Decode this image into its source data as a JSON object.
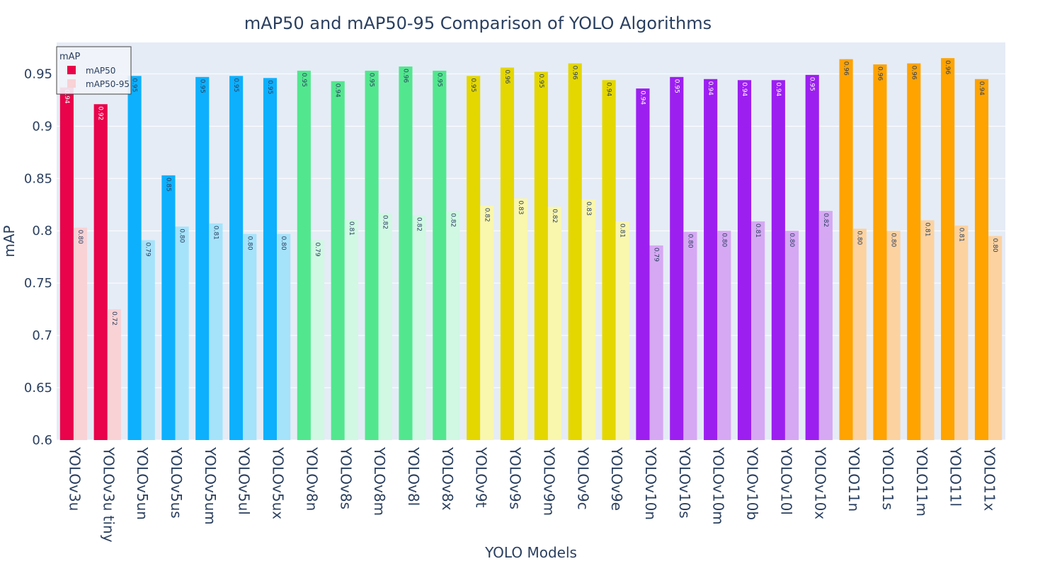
{
  "chart_data": {
    "type": "bar",
    "title": "mAP50 and mAP50-95 Comparison of YOLO Algorithms",
    "xlabel": "YOLO Models",
    "ylabel": "mAP",
    "ylim": [
      0.6,
      0.98
    ],
    "yticks": [
      0.6,
      0.65,
      0.7,
      0.75,
      0.8,
      0.85,
      0.9,
      0.95
    ],
    "ytick_labels": [
      "0.6",
      "0.65",
      "0.7",
      "0.75",
      "0.8",
      "0.85",
      "0.9",
      "0.95"
    ],
    "grid": true,
    "legend": {
      "title": "mAP",
      "position": "top-left",
      "entries": [
        "mAP50",
        "mAP50-95"
      ]
    },
    "categories": [
      "YOLOv3u",
      "YOLOv3u tiny",
      "YOLOv5un",
      "YOLOv5us",
      "YOLOv5um",
      "YOLOv5ul",
      "YOLOv5ux",
      "YOLOv8n",
      "YOLOv8s",
      "YOLOv8m",
      "YOLOv8l",
      "YOLOv8x",
      "YOLOv9t",
      "YOLOv9s",
      "YOLOv9m",
      "YOLOv9c",
      "YOLOv9e",
      "YOLOv10n",
      "YOLOv10s",
      "YOLOv10m",
      "YOLOv10b",
      "YOLOv10l",
      "YOLOv10x",
      "YOLO11n",
      "YOLO11s",
      "YOLO11m",
      "YOLO11l",
      "YOLO11x"
    ],
    "series": [
      {
        "name": "mAP50",
        "values": [
          0.937,
          0.921,
          0.948,
          0.853,
          0.947,
          0.948,
          0.946,
          0.953,
          0.943,
          0.953,
          0.957,
          0.953,
          0.948,
          0.956,
          0.952,
          0.96,
          0.944,
          0.936,
          0.947,
          0.945,
          0.944,
          0.944,
          0.949,
          0.964,
          0.959,
          0.96,
          0.965,
          0.945
        ],
        "labels": [
          "0.94",
          "0.92",
          "0.95",
          "0.85",
          "0.95",
          "0.95",
          "0.95",
          "0.95",
          "0.94",
          "0.95",
          "0.96",
          "0.95",
          "0.95",
          "0.96",
          "0.95",
          "0.96",
          "0.94",
          "0.94",
          "0.95",
          "0.94",
          "0.94",
          "0.94",
          "0.95",
          "0.96",
          "0.96",
          "0.96",
          "0.96",
          "0.94"
        ]
      },
      {
        "name": "mAP50-95",
        "values": [
          0.803,
          0.725,
          0.791,
          0.804,
          0.807,
          0.797,
          0.797,
          0.791,
          0.811,
          0.817,
          0.815,
          0.819,
          0.824,
          0.831,
          0.823,
          0.83,
          0.809,
          0.786,
          0.799,
          0.8,
          0.809,
          0.8,
          0.819,
          0.802,
          0.8,
          0.81,
          0.805,
          0.795
        ],
        "labels": [
          "0.80",
          "0.72",
          "0.79",
          "0.80",
          "0.81",
          "0.80",
          "0.80",
          "0.79",
          "0.81",
          "0.82",
          "0.82",
          "0.82",
          "0.82",
          "0.83",
          "0.82",
          "0.83",
          "0.81",
          "0.79",
          "0.80",
          "0.80",
          "0.81",
          "0.80",
          "0.82",
          "0.80",
          "0.80",
          "0.81",
          "0.81",
          "0.80"
        ]
      }
    ],
    "family_colors": {
      "mAP50": [
        "#e8034a",
        "#e8034a",
        "#0db0fd",
        "#0db0fd",
        "#0db0fd",
        "#0db0fd",
        "#0db0fd",
        "#52e78e",
        "#52e78e",
        "#52e78e",
        "#52e78e",
        "#52e78e",
        "#e4d700",
        "#e4d700",
        "#e4d700",
        "#e4d700",
        "#e4d700",
        "#9c1ff0",
        "#9c1ff0",
        "#9c1ff0",
        "#9c1ff0",
        "#9c1ff0",
        "#9c1ff0",
        "#fea300",
        "#fea300",
        "#fea300",
        "#fea300",
        "#fea300"
      ],
      "mAP50-95": [
        "#f8d2d5",
        "#f8d2d5",
        "#a5e3fb",
        "#a5e3fb",
        "#a5e3fb",
        "#a5e3fb",
        "#a5e3fb",
        "#d0f8e3",
        "#d0f8e3",
        "#d0f8e3",
        "#d0f8e3",
        "#d0f8e3",
        "#f9f6ae",
        "#f9f6ae",
        "#f9f6ae",
        "#f9f6ae",
        "#f9f6ae",
        "#d6a8f4",
        "#d6a8f4",
        "#d6a8f4",
        "#d6a8f4",
        "#d6a8f4",
        "#d6a8f4",
        "#fcd2a0",
        "#fcd2a0",
        "#fcd2a0",
        "#fcd2a0",
        "#fcd2a0"
      ]
    },
    "label_colors": {
      "mAP50": [
        "#ffffff",
        "#ffffff",
        "#2a3f5f",
        "#2a3f5f",
        "#2a3f5f",
        "#2a3f5f",
        "#2a3f5f",
        "#2a3f5f",
        "#2a3f5f",
        "#2a3f5f",
        "#2a3f5f",
        "#2a3f5f",
        "#2a3f5f",
        "#2a3f5f",
        "#2a3f5f",
        "#2a3f5f",
        "#2a3f5f",
        "#ffffff",
        "#ffffff",
        "#ffffff",
        "#ffffff",
        "#ffffff",
        "#ffffff",
        "#2a3f5f",
        "#2a3f5f",
        "#2a3f5f",
        "#2a3f5f",
        "#2a3f5f"
      ],
      "mAP50-95": "#2a3f5f"
    },
    "legend_swatch_colors": {
      "mAP50": "#e8034a",
      "mAP50-95": "#f8d2d5"
    },
    "plot_background": "#e5ecf6",
    "text_color": "#2a3f5f"
  }
}
